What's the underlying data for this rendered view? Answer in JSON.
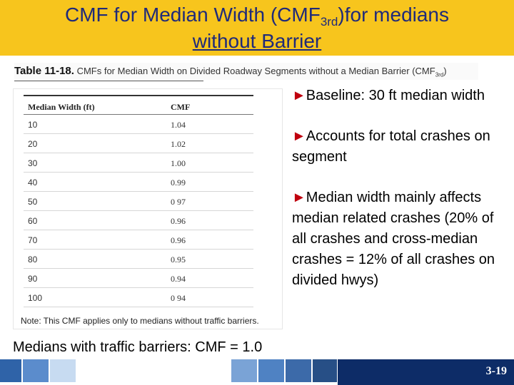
{
  "slide": {
    "title_main": "CMF for Median Width (CMF",
    "title_sub": "3rd",
    "title_tail": ")for medians",
    "title_line2": "without Barrier"
  },
  "table": {
    "caption_label": "Table 11-18.",
    "caption_text": "CMFs for Median Width on Divided Roadway Segments without a Median Barrier (CMF",
    "caption_sub": "3rd",
    "caption_close": ")",
    "headers": [
      "Median Width (ft)",
      "CMF"
    ],
    "rows": [
      [
        "10",
        "1.04"
      ],
      [
        "20",
        "1.02"
      ],
      [
        "30",
        "1.00"
      ],
      [
        "40",
        "0.99"
      ],
      [
        "50",
        "0 97"
      ],
      [
        "60",
        "0.96"
      ],
      [
        "70",
        "0.96"
      ],
      [
        "80",
        "0.95"
      ],
      [
        "90",
        "0.94"
      ],
      [
        "100",
        "0 94"
      ]
    ],
    "note": "Note: This CMF applies only to medians without traffic barriers."
  },
  "bullets": {
    "arrow": "►",
    "items": [
      "Baseline: 30 ft median width",
      "Accounts for total crashes  on segment",
      "Median width mainly affects median related crashes (20% of all crashes and cross-median crashes = 12% of all crashes on divided hwys)"
    ]
  },
  "footer_text": "Medians with traffic barriers: CMF = 1.0",
  "page_number": "3-19",
  "colors": {
    "title_bar": "#f7c51d",
    "title_text": "#1f2a7a",
    "bullet_arrow": "#c0000e",
    "footer_navy": "#0d2c67"
  }
}
